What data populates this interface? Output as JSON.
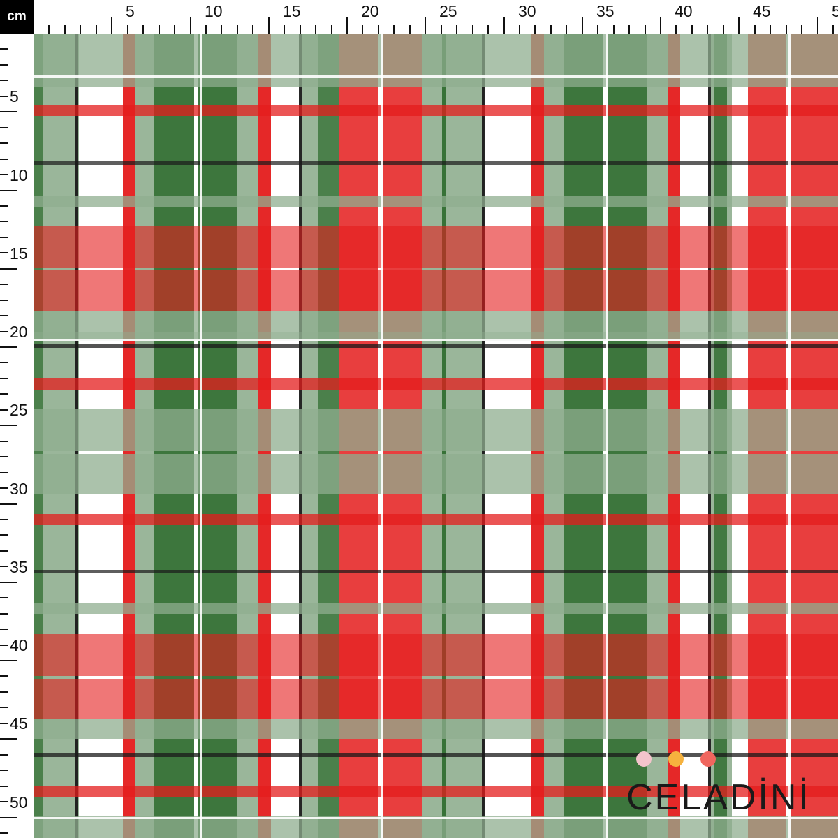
{
  "ruler": {
    "unit": "cm",
    "top_labels": [
      "5",
      "10",
      "15",
      "20",
      "25",
      "30",
      "35",
      "40",
      "45",
      "50"
    ],
    "left_labels": [
      "5",
      "10",
      "15",
      "20",
      "25",
      "30",
      "35",
      "40",
      "45",
      "50"
    ]
  },
  "brand": {
    "name": "CELADİNİ",
    "dot_colors": [
      "#f4c4cc",
      "#f6b23e",
      "#f0665e"
    ]
  },
  "colors": {
    "white": "#ffffff",
    "pale_green": "#8fae8f",
    "dark_green": "#2c6a2c",
    "red": "#e41c1c",
    "pink": "#ec7a7a",
    "maroon": "#8a2a1e",
    "black": "#1a1a1a"
  }
}
